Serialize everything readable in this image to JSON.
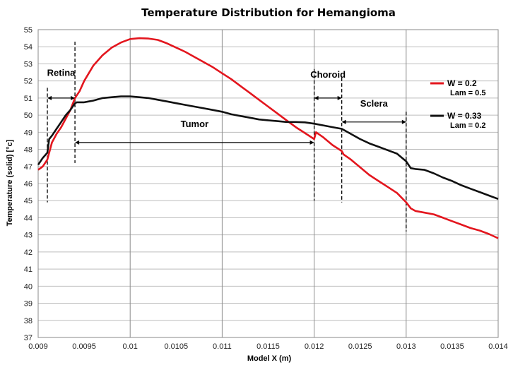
{
  "chart_data": {
    "type": "line",
    "title": "Temperature Distribution for Hemangioma",
    "xlabel": "Model X (m)",
    "ylabel": "Temperature (solid) [°c]",
    "xlim": [
      0.009,
      0.014
    ],
    "ylim": [
      37,
      55
    ],
    "grid": true,
    "x_ticks": [
      "0.009",
      "0.0095",
      "0.01",
      "0.0105",
      "0.011",
      "0.0115",
      "0.012",
      "0.0125",
      "0.013",
      "0.0135",
      "0.014"
    ],
    "x_tick_values": [
      0.009,
      0.0095,
      0.01,
      0.0105,
      0.011,
      0.0115,
      0.012,
      0.0125,
      0.013,
      0.0135,
      0.014
    ],
    "y_ticks": [
      "37",
      "38",
      "39",
      "40",
      "41",
      "42",
      "43",
      "44",
      "45",
      "46",
      "47",
      "48",
      "49",
      "50",
      "51",
      "52",
      "53",
      "54",
      "55"
    ],
    "y_tick_values": [
      37,
      38,
      39,
      40,
      41,
      42,
      43,
      44,
      45,
      46,
      47,
      48,
      49,
      50,
      51,
      52,
      53,
      54,
      55
    ],
    "series": [
      {
        "name": "W = 0.2",
        "sub": "Lam = 0.5",
        "color": "#e3161e",
        "x": [
          0.009,
          0.00905,
          0.0091,
          0.00915,
          0.0092,
          0.00925,
          0.0093,
          0.00935,
          0.0094,
          0.00945,
          0.0095,
          0.0096,
          0.0097,
          0.0098,
          0.0099,
          0.01,
          0.0101,
          0.0102,
          0.0103,
          0.0104,
          0.0105,
          0.0106,
          0.0107,
          0.0108,
          0.0109,
          0.011,
          0.0111,
          0.0112,
          0.0113,
          0.0114,
          0.0115,
          0.0116,
          0.0117,
          0.0118,
          0.0119,
          0.012,
          0.01202,
          0.0121,
          0.0122,
          0.0123,
          0.01232,
          0.0124,
          0.0125,
          0.0126,
          0.0127,
          0.0128,
          0.0129,
          0.013,
          0.01305,
          0.0131,
          0.0132,
          0.0133,
          0.0134,
          0.0135,
          0.0136,
          0.0137,
          0.0138,
          0.0139,
          0.014
        ],
        "y": [
          46.8,
          47.0,
          47.4,
          48.4,
          48.9,
          49.3,
          49.8,
          50.3,
          51.0,
          51.4,
          52.0,
          52.9,
          53.5,
          53.95,
          54.25,
          54.45,
          54.5,
          54.48,
          54.4,
          54.2,
          53.95,
          53.7,
          53.4,
          53.1,
          52.8,
          52.45,
          52.1,
          51.7,
          51.3,
          50.9,
          50.5,
          50.1,
          49.7,
          49.3,
          48.95,
          48.6,
          49.0,
          48.7,
          48.25,
          47.9,
          47.7,
          47.4,
          46.95,
          46.5,
          46.15,
          45.8,
          45.45,
          44.9,
          44.55,
          44.4,
          44.3,
          44.2,
          44.0,
          43.8,
          43.6,
          43.4,
          43.25,
          43.05,
          42.8
        ]
      },
      {
        "name": "W = 0.33",
        "sub": "Lam = 0.2",
        "color": "#111111",
        "x": [
          0.009,
          0.00905,
          0.0091,
          0.00912,
          0.00915,
          0.0092,
          0.00925,
          0.0093,
          0.00935,
          0.0094,
          0.00942,
          0.0095,
          0.0096,
          0.0097,
          0.0098,
          0.0099,
          0.01,
          0.0101,
          0.0102,
          0.0103,
          0.0104,
          0.0105,
          0.0106,
          0.0107,
          0.0108,
          0.0109,
          0.011,
          0.0111,
          0.0112,
          0.0113,
          0.0114,
          0.0115,
          0.0116,
          0.0117,
          0.0118,
          0.0119,
          0.012,
          0.0121,
          0.0122,
          0.0123,
          0.0124,
          0.0125,
          0.0126,
          0.0127,
          0.0128,
          0.0129,
          0.013,
          0.01305,
          0.0131,
          0.0132,
          0.0133,
          0.0134,
          0.0135,
          0.0136,
          0.0137,
          0.0138,
          0.0139,
          0.014
        ],
        "y": [
          47.1,
          47.5,
          47.8,
          48.6,
          48.8,
          49.2,
          49.6,
          50.0,
          50.3,
          50.7,
          50.75,
          50.75,
          50.85,
          51.0,
          51.05,
          51.1,
          51.1,
          51.05,
          51.0,
          50.9,
          50.8,
          50.7,
          50.6,
          50.5,
          50.4,
          50.3,
          50.2,
          50.05,
          49.95,
          49.85,
          49.75,
          49.7,
          49.65,
          49.6,
          49.6,
          49.58,
          49.5,
          49.4,
          49.3,
          49.2,
          48.9,
          48.6,
          48.35,
          48.15,
          47.95,
          47.75,
          47.3,
          46.9,
          46.85,
          46.8,
          46.6,
          46.35,
          46.15,
          45.9,
          45.7,
          45.5,
          45.3,
          45.1
        ]
      }
    ],
    "annotations": [
      {
        "label": "Retina",
        "x_from": 0.0091,
        "x_to": 0.0094,
        "y_arrow": 51.0,
        "y_text": 52.3
      },
      {
        "label": "Tumor",
        "x_from": 0.0094,
        "x_to": 0.012,
        "y_arrow": 48.4,
        "y_text": 49.3
      },
      {
        "label": "Choroid",
        "x_from": 0.012,
        "x_to": 0.0123,
        "y_arrow": 51.0,
        "y_text": 52.2
      },
      {
        "label": "Sclera",
        "x_from": 0.0123,
        "x_to": 0.013,
        "y_arrow": 49.6,
        "y_text": 50.5
      }
    ],
    "boundaries": [
      {
        "x": 0.0091,
        "y_top": 51.6,
        "y_bottom": 44.9
      },
      {
        "x": 0.0094,
        "y_top": 54.3,
        "y_bottom": 47.2
      },
      {
        "x": 0.012,
        "y_top": 52.7,
        "y_bottom": 45.0
      },
      {
        "x": 0.0123,
        "y_top": 52.2,
        "y_bottom": 44.9
      },
      {
        "x": 0.013,
        "y_top": 50.2,
        "y_bottom": 43.2
      }
    ]
  }
}
